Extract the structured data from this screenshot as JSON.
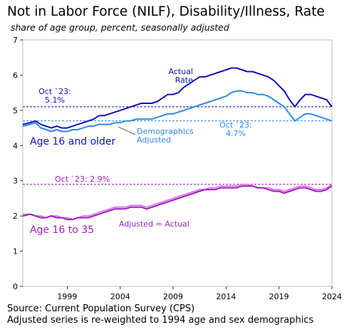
{
  "chart_data": {
    "type": "line",
    "title": "Not in Labor Force (NILF), Disability/Illness, Rate",
    "subtitle": "share of age group, percent, seasonally adjusted",
    "xlim": [
      1994.8,
      2024.0
    ],
    "ylim": [
      0,
      7
    ],
    "x_ticks": [
      "1999",
      "2004",
      "2009",
      "2014",
      "2019",
      "2024"
    ],
    "y_ticks": [
      "0",
      "1",
      "2",
      "3",
      "4",
      "5",
      "6",
      "7"
    ],
    "grid": false,
    "series": [
      {
        "group": "16 and older",
        "role": "actual",
        "color": "#1111bb",
        "x": [
          1994.8,
          1995.5,
          1996.0,
          1996.5,
          1997.0,
          1997.5,
          1998.0,
          1998.5,
          1999.0,
          1999.5,
          2000.0,
          2000.5,
          2001.0,
          2001.5,
          2002.0,
          2002.5,
          2003.0,
          2003.5,
          2004.0,
          2004.5,
          2005.0,
          2005.5,
          2006.0,
          2006.5,
          2007.0,
          2007.5,
          2008.0,
          2008.5,
          2009.0,
          2009.5,
          2010.0,
          2010.5,
          2011.0,
          2011.5,
          2012.0,
          2012.5,
          2013.0,
          2013.5,
          2014.0,
          2014.5,
          2015.0,
          2015.5,
          2016.0,
          2016.5,
          2017.0,
          2017.5,
          2018.0,
          2018.5,
          2019.0,
          2019.5,
          2020.0,
          2020.5,
          2021.0,
          2021.5,
          2022.0,
          2022.5,
          2023.0,
          2023.5,
          2024.0
        ],
        "y": [
          4.6,
          4.65,
          4.7,
          4.6,
          4.55,
          4.5,
          4.55,
          4.5,
          4.5,
          4.55,
          4.6,
          4.65,
          4.7,
          4.75,
          4.85,
          4.85,
          4.9,
          4.95,
          5.0,
          5.05,
          5.1,
          5.15,
          5.2,
          5.2,
          5.2,
          5.25,
          5.35,
          5.45,
          5.45,
          5.5,
          5.65,
          5.75,
          5.85,
          5.95,
          5.95,
          6.0,
          6.05,
          6.1,
          6.15,
          6.2,
          6.2,
          6.15,
          6.1,
          6.1,
          6.05,
          6.0,
          5.95,
          5.85,
          5.7,
          5.55,
          5.3,
          5.1,
          5.3,
          5.45,
          5.45,
          5.4,
          5.35,
          5.3,
          5.1
        ]
      },
      {
        "group": "16 and older",
        "role": "adjusted",
        "color": "#2a8be8",
        "x": [
          1994.8,
          1995.5,
          1996.0,
          1996.5,
          1997.0,
          1997.5,
          1998.0,
          1998.5,
          1999.0,
          1999.5,
          2000.0,
          2000.5,
          2001.0,
          2001.5,
          2002.0,
          2002.5,
          2003.0,
          2003.5,
          2004.0,
          2004.5,
          2005.0,
          2005.5,
          2006.0,
          2006.5,
          2007.0,
          2007.5,
          2008.0,
          2008.5,
          2009.0,
          2009.5,
          2010.0,
          2010.5,
          2011.0,
          2011.5,
          2012.0,
          2012.5,
          2013.0,
          2013.5,
          2014.0,
          2014.5,
          2015.0,
          2015.5,
          2016.0,
          2016.5,
          2017.0,
          2017.5,
          2018.0,
          2018.5,
          2019.0,
          2019.5,
          2020.0,
          2020.5,
          2021.0,
          2021.5,
          2022.0,
          2022.5,
          2023.0,
          2023.5,
          2024.0
        ],
        "y": [
          4.55,
          4.6,
          4.65,
          4.5,
          4.45,
          4.4,
          4.45,
          4.4,
          4.4,
          4.45,
          4.45,
          4.5,
          4.55,
          4.55,
          4.6,
          4.6,
          4.6,
          4.65,
          4.65,
          4.7,
          4.7,
          4.75,
          4.75,
          4.75,
          4.75,
          4.8,
          4.85,
          4.9,
          4.9,
          4.95,
          5.0,
          5.05,
          5.1,
          5.15,
          5.2,
          5.25,
          5.3,
          5.35,
          5.4,
          5.5,
          5.55,
          5.55,
          5.5,
          5.5,
          5.45,
          5.45,
          5.4,
          5.3,
          5.2,
          5.1,
          4.9,
          4.7,
          4.8,
          4.9,
          4.9,
          4.85,
          4.8,
          4.75,
          4.7
        ]
      },
      {
        "group": "16 to 35",
        "role": "actual",
        "color": "#9b1fbf",
        "x": [
          1994.8,
          1995.5,
          1996.0,
          1996.5,
          1997.0,
          1997.5,
          1998.0,
          1998.5,
          1999.0,
          1999.5,
          2000.0,
          2000.5,
          2001.0,
          2001.5,
          2002.0,
          2002.5,
          2003.0,
          2003.5,
          2004.0,
          2004.5,
          2005.0,
          2005.5,
          2006.0,
          2006.5,
          2007.0,
          2007.5,
          2008.0,
          2008.5,
          2009.0,
          2009.5,
          2010.0,
          2010.5,
          2011.0,
          2011.5,
          2012.0,
          2012.5,
          2013.0,
          2013.5,
          2014.0,
          2014.5,
          2015.0,
          2015.5,
          2016.0,
          2016.5,
          2017.0,
          2017.5,
          2018.0,
          2018.5,
          2019.0,
          2019.5,
          2020.0,
          2020.5,
          2021.0,
          2021.5,
          2022.0,
          2022.5,
          2023.0,
          2023.5,
          2024.0
        ],
        "y": [
          2.0,
          2.05,
          2.0,
          1.95,
          1.95,
          2.0,
          1.95,
          1.95,
          1.9,
          1.9,
          1.95,
          1.95,
          1.95,
          2.0,
          2.05,
          2.1,
          2.15,
          2.2,
          2.2,
          2.2,
          2.25,
          2.25,
          2.25,
          2.2,
          2.25,
          2.3,
          2.35,
          2.4,
          2.45,
          2.5,
          2.55,
          2.6,
          2.65,
          2.7,
          2.75,
          2.75,
          2.75,
          2.8,
          2.8,
          2.8,
          2.8,
          2.85,
          2.85,
          2.85,
          2.8,
          2.8,
          2.75,
          2.7,
          2.7,
          2.65,
          2.7,
          2.75,
          2.8,
          2.8,
          2.75,
          2.7,
          2.7,
          2.75,
          2.85
        ]
      },
      {
        "group": "16 to 35",
        "role": "adjusted",
        "color": "#e07ae8",
        "x": [
          1994.8,
          1995.5,
          1996.0,
          1996.5,
          1997.0,
          1997.5,
          1998.0,
          1998.5,
          1999.0,
          1999.5,
          2000.0,
          2000.5,
          2001.0,
          2001.5,
          2002.0,
          2002.5,
          2003.0,
          2003.5,
          2004.0,
          2004.5,
          2005.0,
          2005.5,
          2006.0,
          2006.5,
          2007.0,
          2007.5,
          2008.0,
          2008.5,
          2009.0,
          2009.5,
          2010.0,
          2010.5,
          2011.0,
          2011.5,
          2012.0,
          2012.5,
          2013.0,
          2013.5,
          2014.0,
          2014.5,
          2015.0,
          2015.5,
          2016.0,
          2016.5,
          2017.0,
          2017.5,
          2018.0,
          2018.5,
          2019.0,
          2019.5,
          2020.0,
          2020.5,
          2021.0,
          2021.5,
          2022.0,
          2022.5,
          2023.0,
          2023.5,
          2024.0
        ],
        "y": [
          2.05,
          2.05,
          2.0,
          2.0,
          1.95,
          2.0,
          2.0,
          1.95,
          1.95,
          1.9,
          1.95,
          2.0,
          2.0,
          2.05,
          2.1,
          2.15,
          2.2,
          2.25,
          2.25,
          2.25,
          2.3,
          2.3,
          2.3,
          2.25,
          2.3,
          2.35,
          2.4,
          2.45,
          2.5,
          2.55,
          2.6,
          2.65,
          2.7,
          2.75,
          2.75,
          2.8,
          2.8,
          2.85,
          2.85,
          2.85,
          2.85,
          2.9,
          2.9,
          2.85,
          2.8,
          2.8,
          2.8,
          2.75,
          2.75,
          2.7,
          2.75,
          2.8,
          2.85,
          2.85,
          2.8,
          2.75,
          2.75,
          2.8,
          2.9
        ]
      }
    ],
    "reference_lines": [
      {
        "y": 5.1,
        "color": "#1111bb",
        "label": "Oct `23:\n5.1%"
      },
      {
        "y": 4.7,
        "color": "#2a8be8",
        "label": "Oct `23:\n4.7%"
      },
      {
        "y": 2.9,
        "color": "#9b1fbf",
        "label": "Oct `23: 2.9%"
      }
    ],
    "annotations": {
      "actual_rate": "Actual\nRate",
      "demographics_adjusted": "Demographics\nAdjusted",
      "age_16_older": "Age 16 and older",
      "age_16_35": "Age 16 to 35",
      "adjusted_actual": "Adjusted ≈ Actual"
    }
  },
  "footer": {
    "source": "Source: Current Population Survey (CPS)",
    "note": "Adjusted series is re-weighted to 1994 age and sex demographics"
  }
}
